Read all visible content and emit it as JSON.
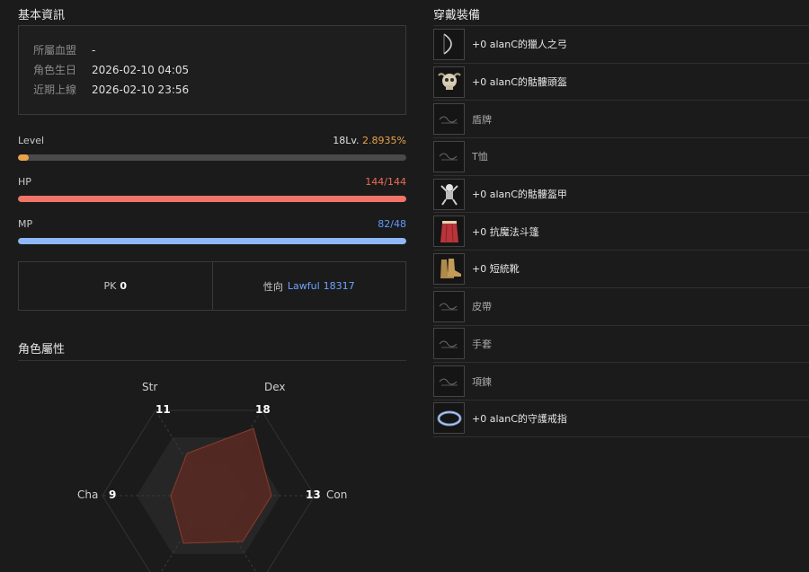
{
  "basic_info": {
    "title": "基本資訊",
    "rows": [
      {
        "label": "所屬血盟",
        "value": "-"
      },
      {
        "label": "角色生日",
        "value": "2026-02-10 04:05"
      },
      {
        "label": "近期上線",
        "value": "2026-02-10 23:56"
      }
    ]
  },
  "stats": {
    "level": {
      "label": "Level",
      "lv": "18Lv.",
      "percent": "2.8935%",
      "fill_fraction": 0.028935,
      "color": "#e8a24a"
    },
    "hp": {
      "label": "HP",
      "value": "144/144",
      "fill_fraction": 1.0,
      "color": "#f07468",
      "value_color": "#f06a55"
    },
    "mp": {
      "label": "MP",
      "value": "82/48",
      "fill_fraction": 1.0,
      "color": "#8fb8f6",
      "value_color": "#5f9bff"
    }
  },
  "pk": {
    "label": "PK",
    "value": "0"
  },
  "alignment": {
    "label": "性向",
    "type": "Lawful",
    "value": "18317"
  },
  "attributes": {
    "title": "角色屬性",
    "items": [
      {
        "name": "Str",
        "value": "11"
      },
      {
        "name": "Dex",
        "value": "18"
      },
      {
        "name": "Con",
        "value": "13"
      },
      {
        "name": "Cha",
        "value": "9"
      }
    ]
  },
  "equipment": {
    "title": "穿戴裝備",
    "items": [
      {
        "name": "+0 alanC的獵人之弓",
        "icon": "bow-icon",
        "filled": true
      },
      {
        "name": "+0 alanC的骷髏頭盔",
        "icon": "skull-helmet-icon",
        "filled": true
      },
      {
        "name": "盾牌",
        "icon": "empty-slot-icon",
        "filled": false
      },
      {
        "name": "T恤",
        "icon": "empty-slot-icon",
        "filled": false
      },
      {
        "name": "+0 alanC的骷髏盔甲",
        "icon": "skeleton-armor-icon",
        "filled": true
      },
      {
        "name": "+0 抗魔法斗篷",
        "icon": "red-cloak-icon",
        "filled": true
      },
      {
        "name": "+0 短統靴",
        "icon": "boots-icon",
        "filled": true
      },
      {
        "name": "皮帶",
        "icon": "empty-slot-icon",
        "filled": false
      },
      {
        "name": "手套",
        "icon": "empty-slot-icon",
        "filled": false
      },
      {
        "name": "項鍊",
        "icon": "empty-slot-icon",
        "filled": false
      },
      {
        "name": "+0 alanC的守護戒指",
        "icon": "ring-icon",
        "filled": true
      }
    ]
  }
}
